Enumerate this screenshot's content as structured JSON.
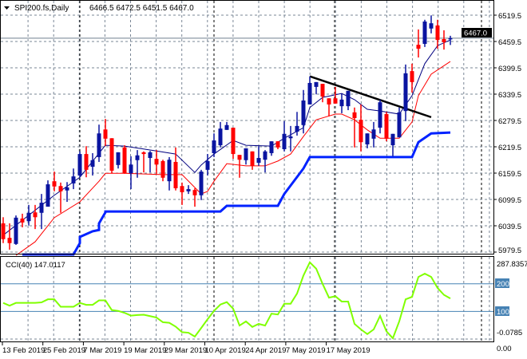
{
  "header": {
    "symbol": "SPI200.fs,Daily",
    "ohlc": "6466.5 6472.5 6451.5 6467.0",
    "menu_icon": "triangle-down-icon"
  },
  "colors": {
    "bull": "#0a14a0",
    "bear": "#ff0000",
    "ma_fast": "#000080",
    "ma_slow": "#ff0000",
    "support": "#0022ff",
    "trendline": "#000000",
    "cci": "#80ff00",
    "cci_levels": "#4682b4",
    "grid": "#7a8796",
    "price_label_bg": "#000000"
  },
  "chart_data": [
    {
      "type": "candlestick",
      "title": "SPI200.fs,Daily",
      "ylim": [
        5979.5,
        6519.5
      ],
      "y_ticks": [
        "6519.5",
        "6459.5",
        "6399.5",
        "6339.5",
        "6279.5",
        "6219.5",
        "6159.5",
        "6099.5",
        "6039.5",
        "5979.5"
      ],
      "x_tick_labels": [
        "13 Feb 2019",
        "25 Feb 2019",
        "7 Mar 2019",
        "19 Mar 2019",
        "29 Mar 2019",
        "10 Apr 2019",
        "24 Apr 2019",
        "7 May 2019",
        "17 May 2019"
      ],
      "current_price": "6467.0",
      "grid": true,
      "ohlc": [
        [
          6045,
          6059,
          6000,
          6009
        ],
        [
          6012,
          6045,
          5985,
          6000
        ],
        [
          5998,
          6063,
          5996,
          6058
        ],
        [
          6056,
          6067,
          6036,
          6047
        ],
        [
          6050,
          6087,
          6040,
          6069
        ],
        [
          6070,
          6087,
          6032,
          6059
        ],
        [
          6069,
          6112,
          6032,
          6092
        ],
        [
          6083,
          6143,
          6083,
          6134
        ],
        [
          6141,
          6163,
          6118,
          6129
        ],
        [
          6130,
          6138,
          6069,
          6118
        ],
        [
          6120,
          6139,
          6094,
          6127
        ],
        [
          6136,
          6170,
          6123,
          6152
        ],
        [
          6154,
          6209,
          6150,
          6203
        ],
        [
          6203,
          6221,
          6150,
          6167
        ],
        [
          6174,
          6205,
          6154,
          6189
        ],
        [
          6196,
          6270,
          6185,
          6250
        ],
        [
          6259,
          6283,
          6221,
          6238
        ],
        [
          6239,
          6239,
          6159,
          6165
        ],
        [
          6178,
          6207,
          6170,
          6207
        ],
        [
          6218,
          6223,
          6158,
          6159
        ],
        [
          6159,
          6198,
          6123,
          6179
        ],
        [
          6189,
          6212,
          6149,
          6200
        ],
        [
          6207,
          6209,
          6161,
          6203
        ],
        [
          6194,
          6210,
          6161,
          6207
        ],
        [
          6192,
          6212,
          6158,
          6179
        ],
        [
          6187,
          6190,
          6141,
          6149
        ],
        [
          6141,
          6196,
          6120,
          6190
        ],
        [
          6185,
          6218,
          6120,
          6125
        ],
        [
          6130,
          6138,
          6087,
          6116
        ],
        [
          6118,
          6132,
          6112,
          6123
        ],
        [
          6121,
          6125,
          6083,
          6109
        ],
        [
          6109,
          6167,
          6098,
          6163
        ],
        [
          6167,
          6203,
          6154,
          6187
        ],
        [
          6205,
          6250,
          6196,
          6234
        ],
        [
          6223,
          6276,
          6218,
          6261
        ],
        [
          6258,
          6276,
          6258,
          6269
        ],
        [
          6263,
          6263,
          6192,
          6203
        ],
        [
          6201,
          6201,
          6149,
          6190
        ],
        [
          6189,
          6216,
          6179,
          6216
        ],
        [
          6209,
          6209,
          6167,
          6176
        ],
        [
          6183,
          6221,
          6176,
          6194
        ],
        [
          6190,
          6212,
          6161,
          6209
        ],
        [
          6205,
          6232,
          6199,
          6232
        ],
        [
          6232,
          6232,
          6214,
          6218
        ],
        [
          6214,
          6278,
          6209,
          6249
        ],
        [
          6239,
          6267,
          6209,
          6243
        ],
        [
          6254,
          6299,
          6245,
          6267
        ],
        [
          6269,
          6349,
          6250,
          6325
        ],
        [
          6316,
          6380,
          6316,
          6365
        ],
        [
          6356,
          6367,
          6339,
          6367
        ],
        [
          6363,
          6363,
          6321,
          6334
        ],
        [
          6330,
          6330,
          6289,
          6316
        ],
        [
          6330,
          6356,
          6318,
          6318
        ],
        [
          6312,
          6341,
          6296,
          6327
        ],
        [
          6312,
          6347,
          6303,
          6347
        ],
        [
          6298,
          6309,
          6218,
          6285
        ],
        [
          6281,
          6316,
          6209,
          6230
        ],
        [
          6225,
          6250,
          6216,
          6250
        ],
        [
          6238,
          6276,
          6218,
          6259
        ],
        [
          6263,
          6327,
          6250,
          6321
        ],
        [
          6294,
          6299,
          6232,
          6238
        ],
        [
          6223,
          6249,
          6198,
          6249
        ],
        [
          6241,
          6309,
          6241,
          6298
        ],
        [
          6301,
          6407,
          6278,
          6387
        ],
        [
          6392,
          6409,
          6343,
          6367
        ],
        [
          6452,
          6487,
          6423,
          6443
        ],
        [
          6454,
          6509,
          6447,
          6505
        ],
        [
          6489,
          6519,
          6478,
          6501
        ],
        [
          6496,
          6509,
          6443,
          6463
        ],
        [
          6465,
          6485,
          6441,
          6458
        ],
        [
          6466.5,
          6472.5,
          6451.5,
          6467.0
        ]
      ],
      "overlays": {
        "ma_fast": [
          [
            0,
            6018
          ],
          [
            8,
            6109
          ],
          [
            12,
            6150
          ],
          [
            16,
            6223
          ],
          [
            19,
            6221
          ],
          [
            24,
            6210
          ],
          [
            27,
            6203
          ],
          [
            30,
            6161
          ],
          [
            31,
            6178
          ],
          [
            33,
            6203
          ],
          [
            36,
            6234
          ],
          [
            38,
            6223
          ],
          [
            42,
            6221
          ],
          [
            44,
            6239
          ],
          [
            47,
            6263
          ],
          [
            48,
            6309
          ],
          [
            50,
            6332
          ],
          [
            53,
            6341
          ],
          [
            55,
            6327
          ],
          [
            57,
            6305
          ],
          [
            59,
            6301
          ],
          [
            62,
            6294
          ],
          [
            64,
            6336
          ],
          [
            66,
            6409
          ],
          [
            68,
            6450
          ],
          [
            70,
            6463
          ]
        ],
        "ma_slow": [
          [
            2,
            5972
          ],
          [
            5,
            6003
          ],
          [
            8,
            6058
          ],
          [
            12,
            6094
          ],
          [
            15,
            6141
          ],
          [
            16,
            6159
          ],
          [
            19,
            6159
          ],
          [
            25,
            6156
          ],
          [
            28,
            6156
          ],
          [
            31,
            6112
          ],
          [
            32,
            6118
          ],
          [
            33,
            6141
          ],
          [
            35,
            6181
          ],
          [
            38,
            6176
          ],
          [
            41,
            6176
          ],
          [
            43,
            6187
          ],
          [
            45,
            6203
          ],
          [
            47,
            6243
          ],
          [
            49,
            6281
          ],
          [
            52,
            6294
          ],
          [
            53,
            6294
          ],
          [
            55,
            6281
          ],
          [
            57,
            6258
          ],
          [
            59,
            6239
          ],
          [
            62,
            6239
          ],
          [
            64,
            6276
          ],
          [
            65,
            6336
          ],
          [
            67,
            6385
          ],
          [
            70,
            6414
          ]
        ],
        "support_step": [
          [
            3,
            5974
          ],
          [
            11,
            5974
          ],
          [
            12,
            6000
          ],
          [
            12,
            6014
          ],
          [
            14,
            6027
          ],
          [
            15,
            6030
          ],
          [
            15,
            6045
          ],
          [
            16,
            6070
          ],
          [
            16,
            6072
          ],
          [
            34,
            6072
          ],
          [
            35,
            6085
          ],
          [
            43,
            6085
          ],
          [
            44,
            6112
          ],
          [
            47,
            6170
          ],
          [
            48,
            6196
          ],
          [
            64,
            6196
          ],
          [
            65,
            6230
          ],
          [
            67,
            6250
          ],
          [
            70,
            6252
          ]
        ],
        "trendline": [
          [
            48,
            6380
          ],
          [
            67,
            6287
          ]
        ]
      }
    },
    {
      "type": "line",
      "label": "CCI(40) 147.0117",
      "ylim": [
        -0.0785,
        287.8357
      ],
      "y_tick_labels": {
        "max": "287.8357",
        "l200": "200",
        "l100": "100",
        "min": "-0.0785",
        "zero": "0.00"
      },
      "levels": [
        200,
        100
      ],
      "values": [
        131,
        121,
        131,
        131,
        131,
        131,
        133,
        144,
        144,
        117,
        117,
        117,
        131,
        124,
        124,
        140,
        140,
        105,
        102,
        95,
        85,
        87,
        88,
        83,
        78,
        61,
        59,
        45,
        25,
        23,
        9,
        40,
        72,
        102,
        125,
        134,
        110,
        49,
        64,
        44,
        55,
        49,
        92,
        89,
        128,
        128,
        165,
        230,
        278,
        255,
        200,
        150,
        155,
        136,
        136,
        55,
        35,
        18,
        35,
        84,
        28,
        3,
        64,
        144,
        153,
        225,
        237,
        225,
        185,
        160,
        147
      ]
    }
  ]
}
